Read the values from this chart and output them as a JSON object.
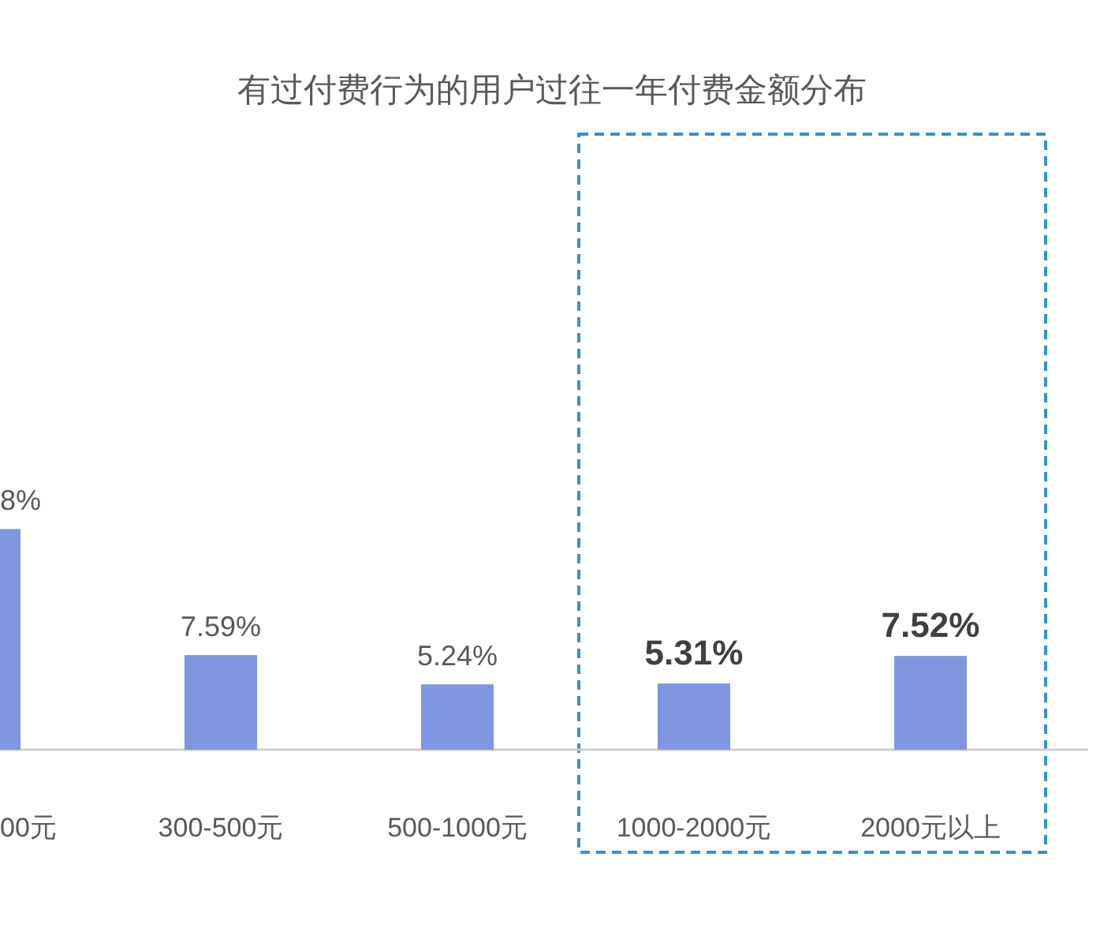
{
  "chart_data": {
    "type": "bar",
    "title": "有过付费行为的用户过往一年付费金额分布",
    "categories": [
      "00元",
      "300-500元",
      "500-1000元",
      "1000-2000元",
      "2000元以上"
    ],
    "values": [
      17.7,
      7.59,
      5.24,
      5.31,
      7.52
    ],
    "value_labels": [
      null,
      "7.59%",
      "5.24%",
      "5.31%",
      "7.52%"
    ],
    "annotations": [
      {
        "text": "8%",
        "x": "00元",
        "y": 17.7
      }
    ],
    "color": "#7f96e0"
  }
}
